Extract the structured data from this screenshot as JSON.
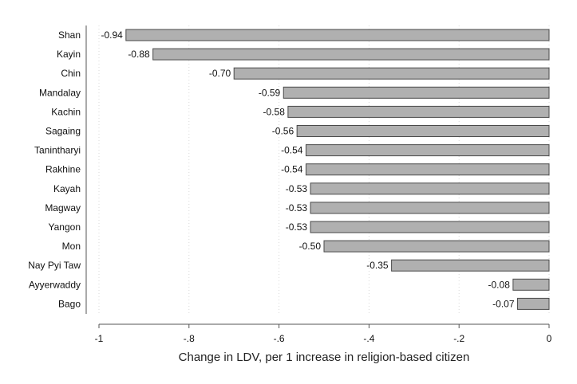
{
  "chart_data": {
    "type": "bar",
    "orientation": "horizontal",
    "categories": [
      "Shan",
      "Kayin",
      "Chin",
      "Mandalay",
      "Kachin",
      "Sagaing",
      "Tanintharyi",
      "Rakhine",
      "Kayah",
      "Magway",
      "Yangon",
      "Mon",
      "Nay Pyi Taw",
      "Ayyerwaddy",
      "Bago"
    ],
    "values": [
      -0.94,
      -0.88,
      -0.7,
      -0.59,
      -0.58,
      -0.56,
      -0.54,
      -0.54,
      -0.53,
      -0.53,
      -0.53,
      -0.5,
      -0.35,
      -0.08,
      -0.07
    ],
    "value_labels": [
      "-0.94",
      "-0.88",
      "-0.70",
      "-0.59",
      "-0.58",
      "-0.56",
      "-0.54",
      "-0.54",
      "-0.53",
      "-0.53",
      "-0.53",
      "-0.50",
      "-0.35",
      "-0.08",
      "-0.07"
    ],
    "xlabel": "Change in LDV, per 1 increase in religion-based citizen",
    "xlim": [
      -1,
      0
    ],
    "xticks": [
      -1,
      -0.8,
      -0.6,
      -0.4,
      -0.2,
      0
    ],
    "xtick_labels": [
      "-1",
      "-.8",
      "-.6",
      "-.4",
      "-.2",
      "0"
    ],
    "grid": "vertical dotted",
    "bar_color": "#b0b0b0",
    "bar_edge_color": "#4a4a4a"
  }
}
